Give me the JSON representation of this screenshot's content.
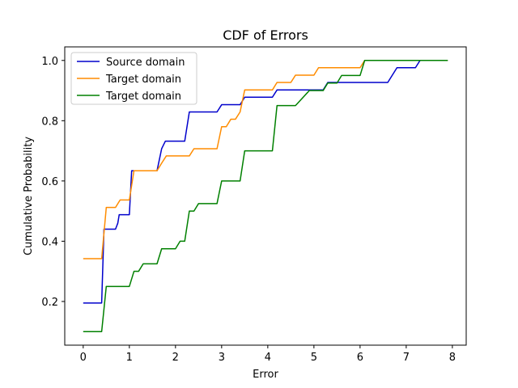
{
  "chart_data": {
    "type": "line",
    "title": "CDF of Errors",
    "xlabel": "Error",
    "ylabel": "Cumulative Probability",
    "xlim": [
      -0.4,
      8.3
    ],
    "ylim": [
      0.055,
      1.045
    ],
    "xticks": [
      0,
      1,
      2,
      3,
      4,
      5,
      6,
      7,
      8
    ],
    "yticks": [
      0.2,
      0.4,
      0.6,
      0.8,
      1.0
    ],
    "ytick_labels": [
      "0.2",
      "0.4",
      "0.6",
      "0.8",
      "1.0"
    ],
    "grid": false,
    "legend_position": "top-left",
    "series": [
      {
        "name": "Source domain",
        "color": "#0000cc",
        "x": [
          0,
          0.4,
          0.45,
          0.7,
          0.75,
          0.78,
          1.0,
          1.05,
          1.6,
          1.7,
          1.78,
          2.2,
          2.3,
          2.9,
          3.0,
          3.4,
          3.5,
          4.1,
          4.2,
          5.2,
          5.3,
          6.6,
          6.8,
          7.2,
          7.3,
          7.9
        ],
        "y": [
          0.195,
          0.195,
          0.44,
          0.44,
          0.46,
          0.488,
          0.488,
          0.634,
          0.634,
          0.707,
          0.732,
          0.732,
          0.829,
          0.829,
          0.853,
          0.853,
          0.878,
          0.878,
          0.902,
          0.902,
          0.927,
          0.927,
          0.976,
          0.976,
          1.0,
          1.0
        ]
      },
      {
        "name": "Target domain",
        "color": "#ff8c00",
        "x": [
          0,
          0.4,
          0.5,
          0.7,
          0.8,
          1.0,
          1.1,
          1.6,
          1.7,
          1.8,
          2.3,
          2.4,
          2.9,
          3.0,
          3.1,
          3.2,
          3.3,
          3.4,
          3.5,
          4.1,
          4.2,
          4.5,
          4.6,
          5.0,
          5.1,
          6.0,
          6.1,
          7.9
        ],
        "y": [
          0.342,
          0.342,
          0.512,
          0.512,
          0.537,
          0.537,
          0.634,
          0.634,
          0.659,
          0.683,
          0.683,
          0.707,
          0.707,
          0.78,
          0.78,
          0.805,
          0.805,
          0.829,
          0.902,
          0.902,
          0.927,
          0.927,
          0.951,
          0.951,
          0.976,
          0.976,
          1.0,
          1.0
        ]
      },
      {
        "name": "Target domain",
        "color": "#008000",
        "x": [
          0,
          0.4,
          0.5,
          1.0,
          1.1,
          1.2,
          1.3,
          1.6,
          1.7,
          2.0,
          2.1,
          2.2,
          2.3,
          2.4,
          2.5,
          2.9,
          3.0,
          3.4,
          3.5,
          4.1,
          4.2,
          4.6,
          4.9,
          5.2,
          5.3,
          5.5,
          5.6,
          6.0,
          6.1,
          7.9
        ],
        "y": [
          0.1,
          0.1,
          0.25,
          0.25,
          0.3,
          0.3,
          0.325,
          0.325,
          0.375,
          0.375,
          0.4,
          0.4,
          0.5,
          0.5,
          0.525,
          0.525,
          0.6,
          0.6,
          0.7,
          0.7,
          0.85,
          0.85,
          0.9,
          0.9,
          0.925,
          0.925,
          0.95,
          0.95,
          1.0,
          1.0
        ]
      }
    ]
  }
}
